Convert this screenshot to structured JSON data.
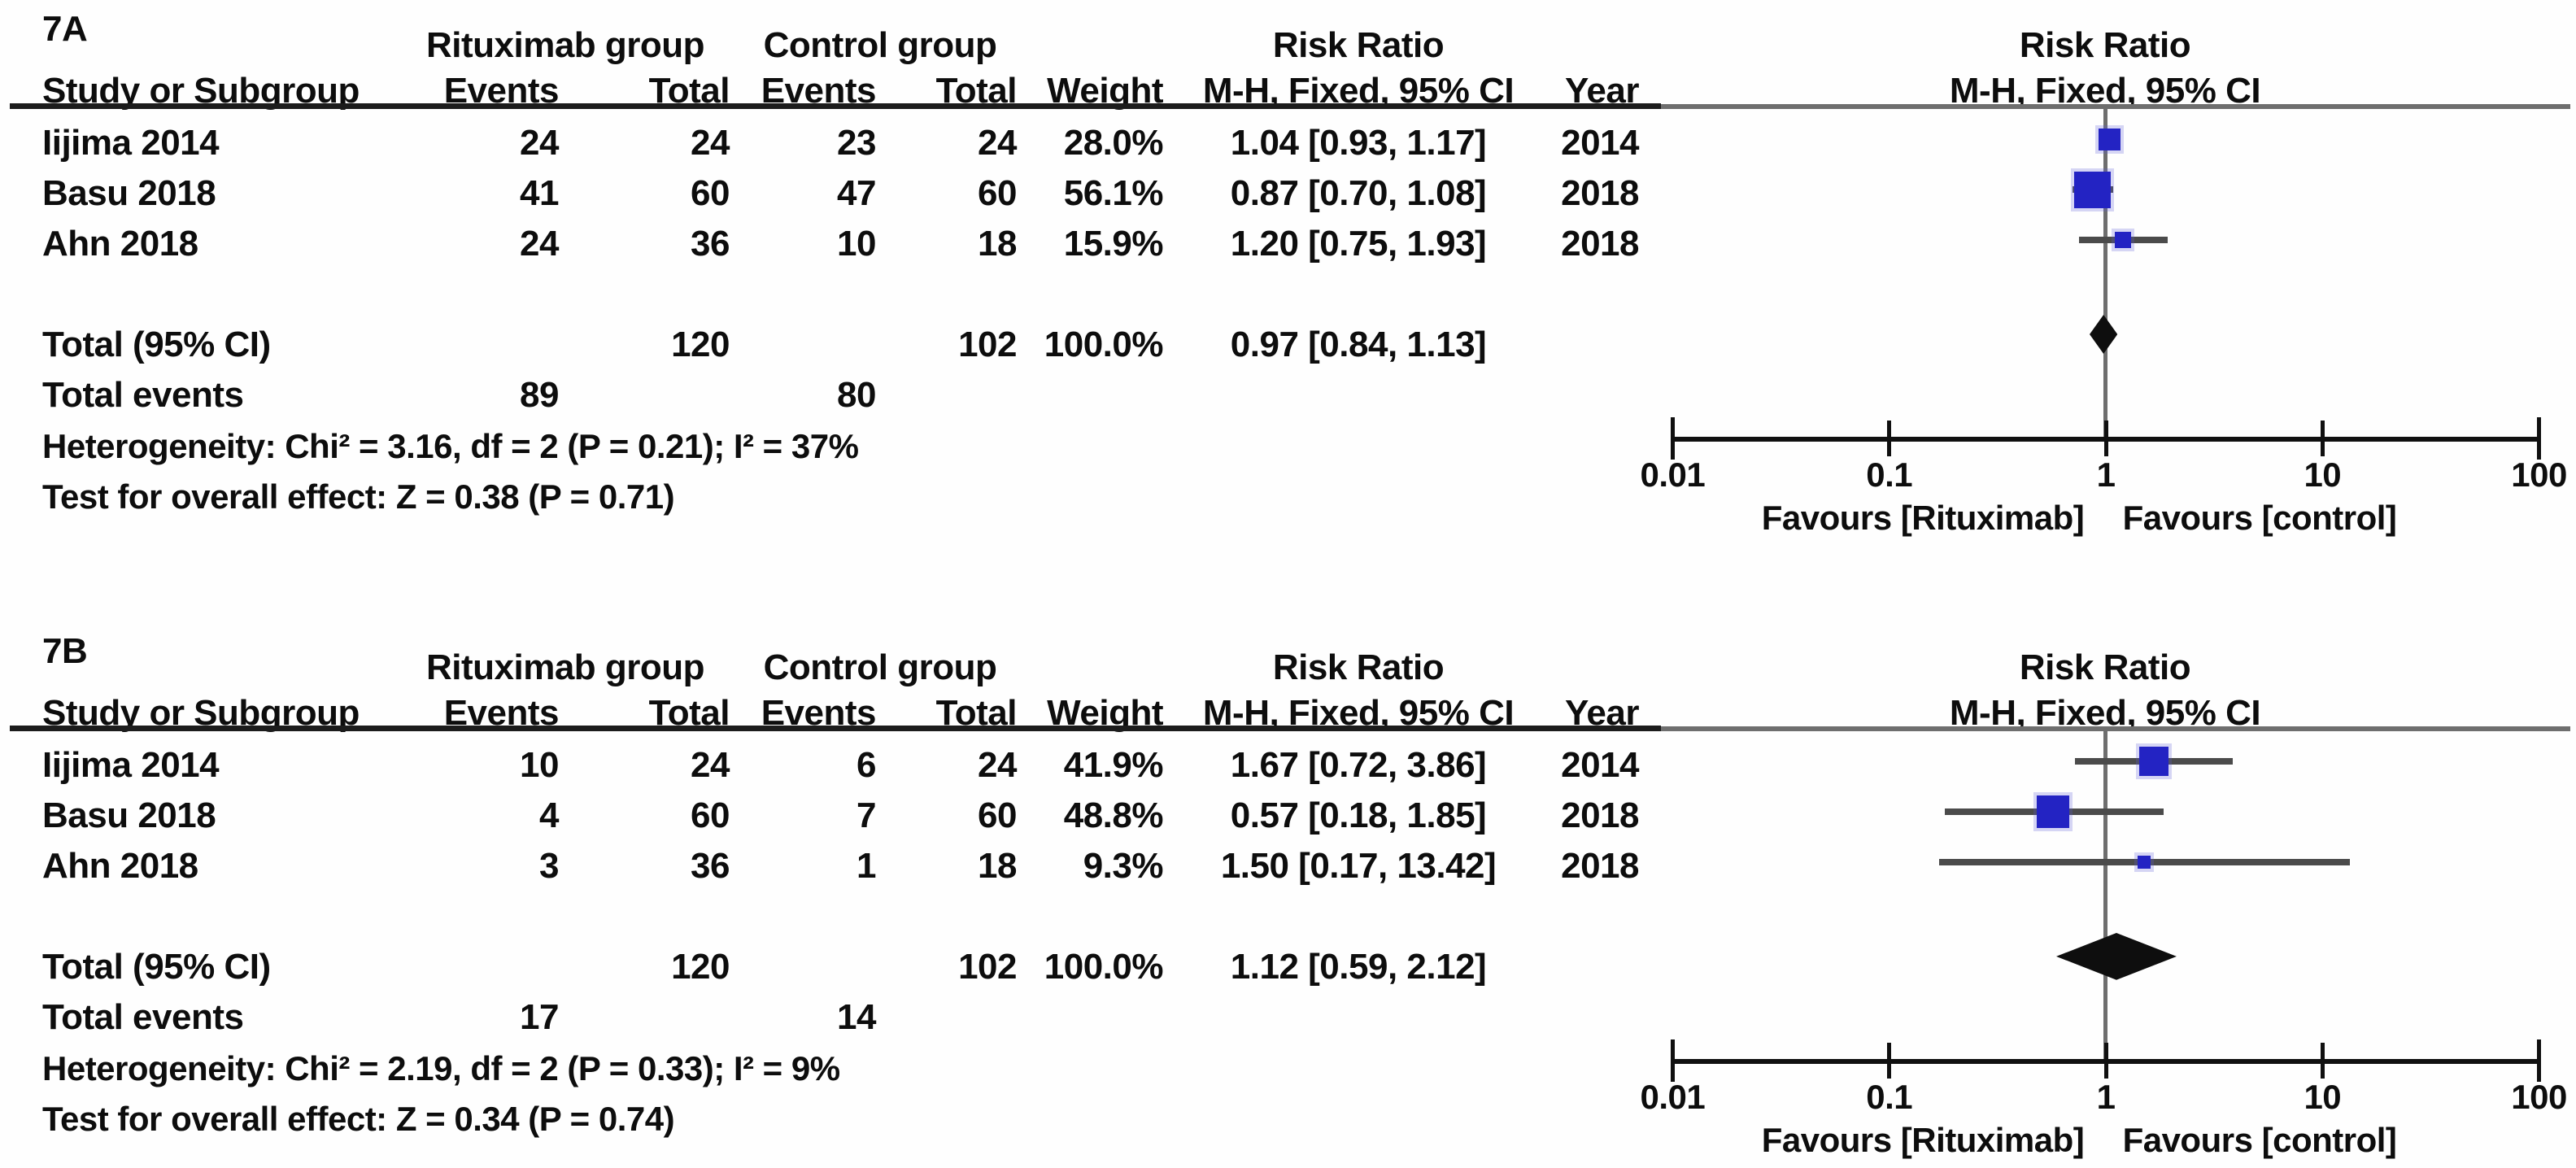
{
  "figure": {
    "panels": [
      {
        "label": "7A",
        "table": {
          "group1": "Rituximab group",
          "group2": "Control group",
          "effect_col": "Risk Ratio",
          "effect_method": "M-H, Fixed, 95% CI",
          "headers": {
            "study": "Study or Subgroup",
            "events": "Events",
            "total": "Total",
            "weight": "Weight",
            "year": "Year"
          },
          "rows": [
            {
              "study": "Iijima 2014",
              "e1": "24",
              "t1": "24",
              "e2": "23",
              "t2": "24",
              "weight": "28.0%",
              "estimate": "1.04 [0.93, 1.17]",
              "year": "2014"
            },
            {
              "study": "Basu 2018",
              "e1": "41",
              "t1": "60",
              "e2": "47",
              "t2": "60",
              "weight": "56.1%",
              "estimate": "0.87 [0.70, 1.08]",
              "year": "2018"
            },
            {
              "study": "Ahn 2018",
              "e1": "24",
              "t1": "36",
              "e2": "10",
              "t2": "18",
              "weight": "15.9%",
              "estimate": "1.20 [0.75, 1.93]",
              "year": "2018"
            }
          ],
          "total_label": "Total (95% CI)",
          "total": {
            "t1": "120",
            "t2": "102",
            "weight": "100.0%",
            "estimate": "0.97 [0.84, 1.13]"
          },
          "total_events_label": "Total events",
          "total_events": {
            "e1": "89",
            "e2": "80"
          },
          "heterogeneity": "Heterogeneity: Chi² = 3.16, df = 2 (P = 0.21); I² = 37%",
          "overall_effect": "Test for overall effect: Z = 0.38 (P = 0.71)"
        },
        "plot": {
          "title": "Risk Ratio",
          "subtitle": "M-H, Fixed, 95% CI",
          "favours_left": "Favours [Rituximab]",
          "favours_right": "Favours [control]"
        }
      },
      {
        "label": "7B",
        "table": {
          "group1": "Rituximab group",
          "group2": "Control group",
          "effect_col": "Risk Ratio",
          "effect_method": "M-H, Fixed, 95% CI",
          "headers": {
            "study": "Study or Subgroup",
            "events": "Events",
            "total": "Total",
            "weight": "Weight",
            "year": "Year"
          },
          "rows": [
            {
              "study": "Iijima 2014",
              "e1": "10",
              "t1": "24",
              "e2": "6",
              "t2": "24",
              "weight": "41.9%",
              "estimate": "1.67 [0.72, 3.86]",
              "year": "2014"
            },
            {
              "study": "Basu 2018",
              "e1": "4",
              "t1": "60",
              "e2": "7",
              "t2": "60",
              "weight": "48.8%",
              "estimate": "0.57 [0.18, 1.85]",
              "year": "2018"
            },
            {
              "study": "Ahn 2018",
              "e1": "3",
              "t1": "36",
              "e2": "1",
              "t2": "18",
              "weight": "9.3%",
              "estimate": "1.50 [0.17, 13.42]",
              "year": "2018"
            }
          ],
          "total_label": "Total (95% CI)",
          "total": {
            "t1": "120",
            "t2": "102",
            "weight": "100.0%",
            "estimate": "1.12 [0.59, 2.12]"
          },
          "total_events_label": "Total events",
          "total_events": {
            "e1": "17",
            "e2": "14"
          },
          "heterogeneity": "Heterogeneity: Chi² = 2.19, df = 2 (P = 0.33); I² = 9%",
          "overall_effect": "Test for overall effect: Z = 0.34 (P = 0.74)"
        },
        "plot": {
          "title": "Risk Ratio",
          "subtitle": "M-H, Fixed, 95% CI",
          "favours_left": "Favours [Rituximab]",
          "favours_right": "Favours [control]"
        }
      }
    ]
  },
  "chart_data": [
    {
      "type": "forest",
      "panel": "7A",
      "effect_measure": "Risk Ratio, M-H, Fixed, 95% CI",
      "x_scale": "log10",
      "x_ticks": [
        0.01,
        0.1,
        1,
        10,
        100
      ],
      "x_tick_labels": [
        "0.01",
        "0.1",
        "1",
        "10",
        "100"
      ],
      "null_line": 1,
      "xlabel_left": "Favours [Rituximab]",
      "xlabel_right": "Favours [control]",
      "studies": [
        {
          "name": "Iijima 2014",
          "rr": 1.04,
          "ci_low": 0.93,
          "ci_high": 1.17,
          "weight_pct": 28.0,
          "year": 2014
        },
        {
          "name": "Basu 2018",
          "rr": 0.87,
          "ci_low": 0.7,
          "ci_high": 1.08,
          "weight_pct": 56.1,
          "year": 2018
        },
        {
          "name": "Ahn 2018",
          "rr": 1.2,
          "ci_low": 0.75,
          "ci_high": 1.93,
          "weight_pct": 15.9,
          "year": 2018
        }
      ],
      "total": {
        "rr": 0.97,
        "ci_low": 0.84,
        "ci_high": 1.13,
        "weight_pct": 100.0
      }
    },
    {
      "type": "forest",
      "panel": "7B",
      "effect_measure": "Risk Ratio, M-H, Fixed, 95% CI",
      "x_scale": "log10",
      "x_ticks": [
        0.01,
        0.1,
        1,
        10,
        100
      ],
      "x_tick_labels": [
        "0.01",
        "0.1",
        "1",
        "10",
        "100"
      ],
      "null_line": 1,
      "xlabel_left": "Favours [Rituximab]",
      "xlabel_right": "Favours [control]",
      "studies": [
        {
          "name": "Iijima 2014",
          "rr": 1.67,
          "ci_low": 0.72,
          "ci_high": 3.86,
          "weight_pct": 41.9,
          "year": 2014
        },
        {
          "name": "Basu 2018",
          "rr": 0.57,
          "ci_low": 0.18,
          "ci_high": 1.85,
          "weight_pct": 48.8,
          "year": 2018
        },
        {
          "name": "Ahn 2018",
          "rr": 1.5,
          "ci_low": 0.17,
          "ci_high": 13.42,
          "weight_pct": 9.3,
          "year": 2018
        }
      ],
      "total": {
        "rr": 1.12,
        "ci_low": 0.59,
        "ci_high": 2.12,
        "weight_pct": 100.0
      }
    }
  ]
}
